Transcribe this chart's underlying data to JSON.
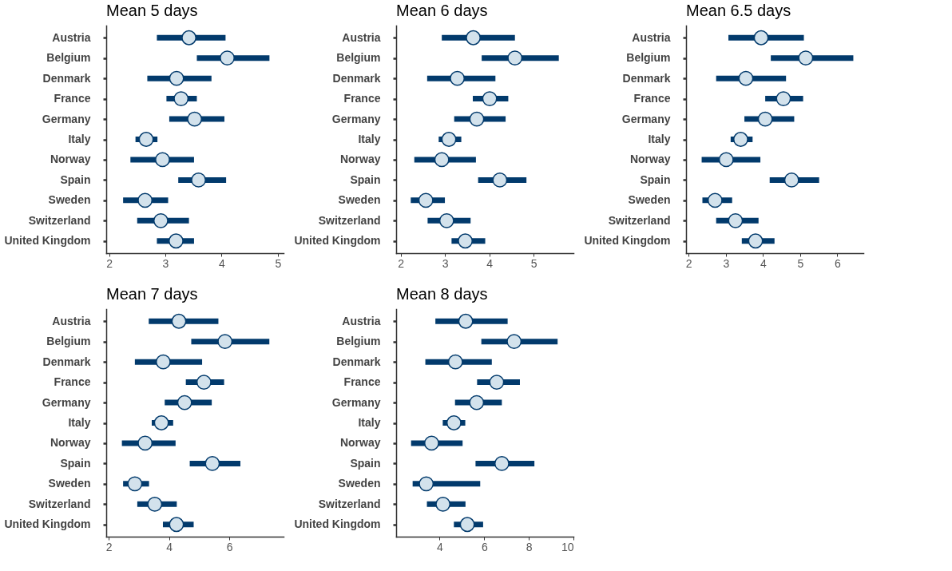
{
  "chart_data": [
    {
      "type": "scatter",
      "title": "Mean 5 days",
      "orientation": "horizontal",
      "marker": "circle",
      "color": "#d3e2ec",
      "categories": [
        "Austria",
        "Belgium",
        "Denmark",
        "France",
        "Germany",
        "Italy",
        "Norway",
        "Spain",
        "Sweden",
        "Switzerland",
        "United Kingdom"
      ],
      "values": [
        3.42,
        4.1,
        3.2,
        3.28,
        3.52,
        2.66,
        2.95,
        3.59,
        2.64,
        2.92,
        3.19
      ],
      "errors": [
        [
          2.85,
          4.07
        ],
        [
          3.56,
          4.85
        ],
        [
          2.68,
          3.82
        ],
        [
          3.02,
          3.56
        ],
        [
          3.07,
          4.05
        ],
        [
          2.47,
          2.86
        ],
        [
          2.38,
          3.51
        ],
        [
          3.23,
          4.08
        ],
        [
          2.25,
          3.05
        ],
        [
          2.5,
          3.42
        ],
        [
          2.85,
          3.51
        ]
      ],
      "xlim": [
        1.95,
        5.1
      ],
      "xticks": [
        2,
        3,
        4,
        5
      ]
    },
    {
      "type": "scatter",
      "title": "Mean 6 days",
      "orientation": "horizontal",
      "marker": "circle",
      "color": "#d3e2ec",
      "categories": [
        "Austria",
        "Belgium",
        "Denmark",
        "France",
        "Germany",
        "Italy",
        "Norway",
        "Spain",
        "Sweden",
        "Switzerland",
        "United Kingdom"
      ],
      "values": [
        3.64,
        4.58,
        3.28,
        4.01,
        3.72,
        3.09,
        2.93,
        4.24,
        2.57,
        3.04,
        3.46
      ],
      "errors": [
        [
          2.93,
          4.58
        ],
        [
          3.83,
          5.57
        ],
        [
          2.6,
          4.14
        ],
        [
          3.63,
          4.43
        ],
        [
          3.21,
          4.37
        ],
        [
          2.86,
          3.37
        ],
        [
          2.31,
          3.7
        ],
        [
          3.75,
          4.84
        ],
        [
          2.23,
          3.0
        ],
        [
          2.61,
          3.58
        ],
        [
          3.15,
          3.91
        ]
      ],
      "xlim": [
        1.9,
        5.9
      ],
      "xticks": [
        2,
        3,
        4,
        5
      ]
    },
    {
      "type": "scatter",
      "title": "Mean 6.5 days",
      "orientation": "horizontal",
      "marker": "circle",
      "color": "#d3e2ec",
      "categories": [
        "Austria",
        "Belgium",
        "Denmark",
        "France",
        "Germany",
        "Italy",
        "Norway",
        "Spain",
        "Sweden",
        "Switzerland",
        "United Kingdom"
      ],
      "values": [
        3.95,
        5.15,
        3.54,
        4.55,
        4.06,
        3.4,
        3.01,
        4.77,
        2.71,
        3.26,
        3.8
      ],
      "errors": [
        [
          3.07,
          5.1
        ],
        [
          4.21,
          6.43
        ],
        [
          2.74,
          4.62
        ],
        [
          4.06,
          5.08
        ],
        [
          3.5,
          4.84
        ],
        [
          3.13,
          3.72
        ],
        [
          2.35,
          3.93
        ],
        [
          4.18,
          5.51
        ],
        [
          2.37,
          3.17
        ],
        [
          2.74,
          3.88
        ],
        [
          3.43,
          4.31
        ]
      ],
      "xlim": [
        1.93,
        6.7
      ],
      "xticks": [
        2,
        3,
        4,
        5,
        6
      ]
    },
    {
      "type": "scatter",
      "title": "Mean 7 days",
      "orientation": "horizontal",
      "marker": "circle",
      "color": "#d3e2ec",
      "categories": [
        "Austria",
        "Belgium",
        "Denmark",
        "France",
        "Germany",
        "Italy",
        "Norway",
        "Spain",
        "Sweden",
        "Switzerland",
        "United Kingdom"
      ],
      "values": [
        4.33,
        5.86,
        3.81,
        5.16,
        4.52,
        3.75,
        3.21,
        5.44,
        2.87,
        3.53,
        4.25
      ],
      "errors": [
        [
          3.33,
          5.64
        ],
        [
          4.74,
          7.33
        ],
        [
          2.87,
          5.1
        ],
        [
          4.56,
          5.83
        ],
        [
          3.86,
          5.42
        ],
        [
          3.43,
          4.14
        ],
        [
          2.44,
          4.22
        ],
        [
          4.69,
          6.37
        ],
        [
          2.48,
          3.34
        ],
        [
          2.95,
          4.26
        ],
        [
          3.8,
          4.82
        ]
      ],
      "xlim": [
        1.92,
        7.8
      ],
      "xticks": [
        2,
        4,
        6
      ]
    },
    {
      "type": "scatter",
      "title": "Mean 8 days",
      "orientation": "horizontal",
      "marker": "circle",
      "color": "#d3e2ec",
      "categories": [
        "Austria",
        "Belgium",
        "Denmark",
        "France",
        "Germany",
        "Italy",
        "Norway",
        "Spain",
        "Sweden",
        "Switzerland",
        "United Kingdom"
      ],
      "values": [
        5.17,
        7.34,
        4.71,
        6.56,
        5.66,
        4.64,
        3.64,
        6.79,
        3.4,
        4.15,
        5.24
      ],
      "errors": [
        [
          3.81,
          7.05
        ],
        [
          5.87,
          9.29
        ],
        [
          3.36,
          6.34
        ],
        [
          5.68,
          7.6
        ],
        [
          4.69,
          6.79
        ],
        [
          4.14,
          5.15
        ],
        [
          2.72,
          5.03
        ],
        [
          5.61,
          8.25
        ],
        [
          2.79,
          5.82
        ],
        [
          3.43,
          5.16
        ],
        [
          4.64,
          5.95
        ]
      ],
      "xlim": [
        2.05,
        10
      ],
      "xticks": [
        4,
        6,
        8,
        10
      ]
    }
  ]
}
